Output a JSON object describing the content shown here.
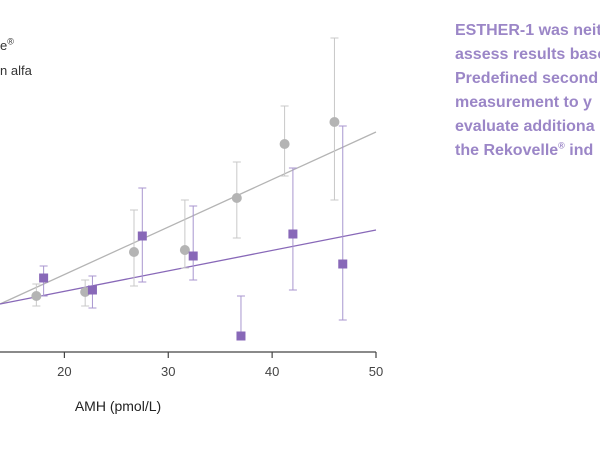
{
  "legend": {
    "lines": [
      "e",
      "n alfa"
    ],
    "mark": "®"
  },
  "side_text": {
    "lines": [
      "ESTHER-1 was neit",
      "assess results base",
      "Predefined second",
      "measurement to y",
      "evaluate additiona",
      "the Rekovelle",
      " ind"
    ],
    "mark": "®"
  },
  "colors": {
    "grey_series": "#b4b4b4",
    "purple_series": "#8868b8",
    "error_bar_grey": "#c8c8c8",
    "error_bar_purple": "#a896cf",
    "axis": "#444444",
    "side_text": "#9b86c7"
  },
  "chart_data": {
    "type": "scatter",
    "xlabel": "AMH (pmol/L)",
    "ylabel": "",
    "xlim": [
      13.8,
      50
    ],
    "x_ticks": [
      20,
      30,
      40,
      50
    ],
    "series": [
      {
        "marker": "circle",
        "color": "#b4b4b4",
        "points": [
          {
            "x": 17.3,
            "y": 0.3,
            "err_lo": 0.25,
            "err_hi": 0.36
          },
          {
            "x": 22.0,
            "y": 0.32,
            "err_lo": 0.25,
            "err_hi": 0.38
          },
          {
            "x": 26.7,
            "y": 0.52,
            "err_lo": 0.35,
            "err_hi": 0.73
          },
          {
            "x": 31.6,
            "y": 0.53,
            "err_lo": 0.44,
            "err_hi": 0.78
          },
          {
            "x": 36.6,
            "y": 0.79,
            "err_lo": 0.59,
            "err_hi": 0.97
          },
          {
            "x": 41.2,
            "y": 1.06,
            "err_lo": 0.9,
            "err_hi": 1.25
          },
          {
            "x": 46.0,
            "y": 1.17,
            "err_lo": 0.78,
            "err_hi": 1.59
          }
        ],
        "trend": [
          [
            13.8,
            0.26
          ],
          [
            50,
            1.12
          ]
        ]
      },
      {
        "marker": "square",
        "color": "#8868b8",
        "points": [
          {
            "x": 18.0,
            "y": 0.39,
            "err_lo": 0.3,
            "err_hi": 0.45
          },
          {
            "x": 22.7,
            "y": 0.33,
            "err_lo": 0.24,
            "err_hi": 0.4
          },
          {
            "x": 27.5,
            "y": 0.6,
            "err_lo": 0.37,
            "err_hi": 0.84
          },
          {
            "x": 32.4,
            "y": 0.5,
            "err_lo": 0.38,
            "err_hi": 0.75
          },
          {
            "x": 37.0,
            "y": 0.1,
            "err_lo": 0.1,
            "err_hi": 0.3
          },
          {
            "x": 42.0,
            "y": 0.61,
            "err_lo": 0.33,
            "err_hi": 0.94
          },
          {
            "x": 46.8,
            "y": 0.46,
            "err_lo": 0.18,
            "err_hi": 1.15
          }
        ],
        "trend": [
          [
            13.8,
            0.26
          ],
          [
            50,
            0.63
          ]
        ]
      }
    ]
  }
}
